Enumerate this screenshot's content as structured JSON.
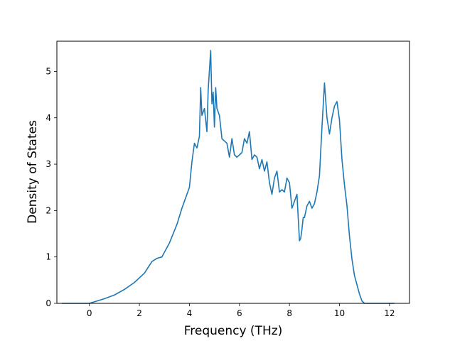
{
  "chart_data": {
    "type": "line",
    "title": "",
    "xlabel": "Frequency (THz)",
    "ylabel": "Density of States",
    "xlim": [
      -1.3,
      12.8
    ],
    "ylim": [
      0,
      5.65
    ],
    "xticks": [
      0,
      2,
      4,
      6,
      8,
      10,
      12
    ],
    "yticks": [
      0,
      1,
      2,
      3,
      4,
      5
    ],
    "grid": false,
    "legend": "none",
    "series": [
      {
        "color": "#1f77b4",
        "x": [
          -1.1,
          -0.5,
          0.0,
          0.3,
          0.6,
          1.0,
          1.4,
          1.8,
          2.2,
          2.5,
          2.7,
          2.9,
          3.0,
          3.2,
          3.5,
          3.7,
          3.8,
          4.0,
          4.1,
          4.2,
          4.3,
          4.4,
          4.45,
          4.5,
          4.6,
          4.7,
          4.75,
          4.85,
          4.9,
          4.95,
          5.0,
          5.05,
          5.1,
          5.2,
          5.3,
          5.4,
          5.5,
          5.6,
          5.7,
          5.8,
          5.9,
          6.0,
          6.1,
          6.2,
          6.3,
          6.4,
          6.5,
          6.6,
          6.7,
          6.8,
          6.9,
          7.0,
          7.1,
          7.2,
          7.3,
          7.4,
          7.5,
          7.6,
          7.7,
          7.8,
          7.9,
          8.0,
          8.1,
          8.2,
          8.3,
          8.4,
          8.45,
          8.5,
          8.55,
          8.6,
          8.7,
          8.8,
          8.9,
          9.0,
          9.1,
          9.2,
          9.3,
          9.4,
          9.5,
          9.6,
          9.7,
          9.8,
          9.9,
          10.0,
          10.1,
          10.2,
          10.3,
          10.4,
          10.5,
          10.6,
          10.7,
          10.8,
          10.9,
          11.0,
          11.1,
          11.5,
          12.0,
          12.2
        ],
        "values": [
          0.0,
          0.0,
          0.0,
          0.05,
          0.1,
          0.18,
          0.3,
          0.45,
          0.65,
          0.9,
          0.97,
          1.0,
          1.1,
          1.3,
          1.7,
          2.05,
          2.2,
          2.5,
          3.05,
          3.45,
          3.35,
          3.6,
          4.65,
          4.05,
          4.2,
          3.7,
          4.6,
          5.45,
          4.3,
          4.55,
          3.8,
          4.65,
          4.2,
          4.05,
          3.55,
          3.5,
          3.45,
          3.15,
          3.55,
          3.2,
          3.15,
          3.2,
          3.25,
          3.55,
          3.45,
          3.7,
          3.1,
          3.2,
          3.15,
          2.9,
          3.1,
          2.85,
          3.05,
          2.6,
          2.35,
          2.7,
          2.85,
          2.4,
          2.45,
          2.4,
          2.7,
          2.6,
          2.05,
          2.2,
          2.35,
          1.35,
          1.4,
          1.6,
          1.85,
          1.85,
          2.1,
          2.2,
          2.05,
          2.15,
          2.4,
          2.75,
          3.8,
          4.75,
          4.0,
          3.65,
          4.0,
          4.25,
          4.35,
          3.95,
          3.1,
          2.55,
          2.1,
          1.45,
          0.95,
          0.6,
          0.4,
          0.2,
          0.05,
          0.0,
          0.0,
          0.0,
          0.0,
          0.0
        ]
      }
    ]
  }
}
